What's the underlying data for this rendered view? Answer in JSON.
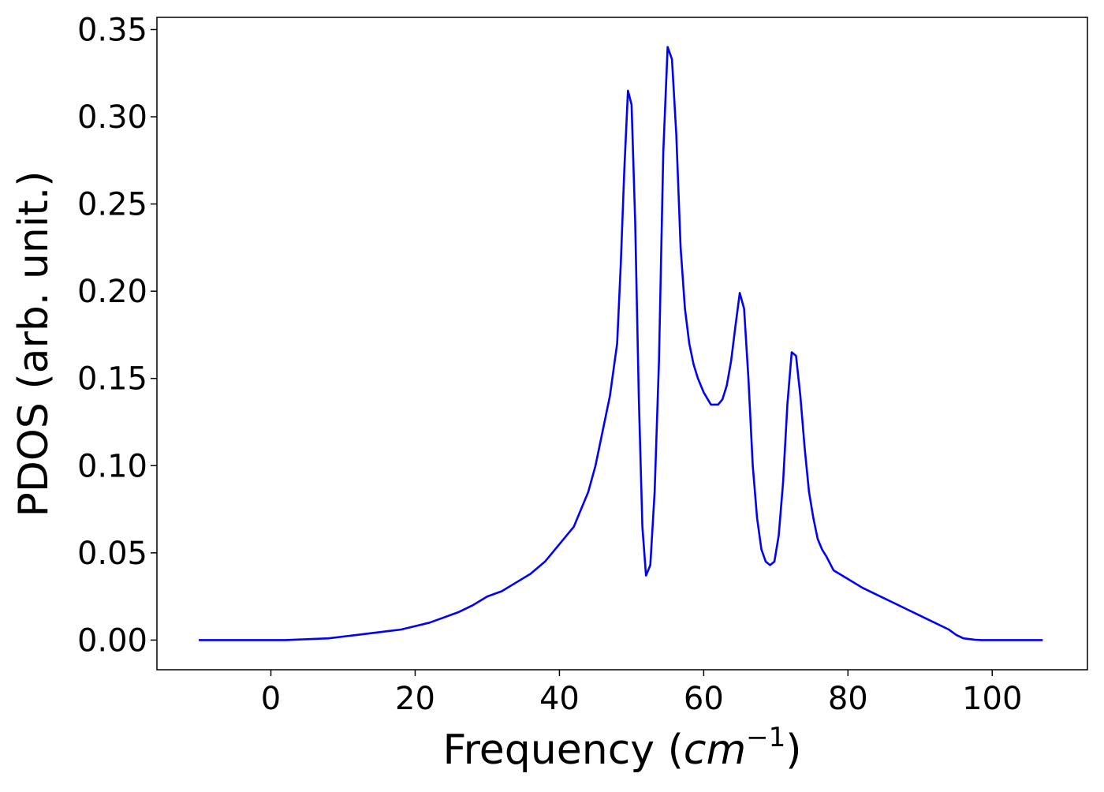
{
  "chart_data": {
    "type": "line",
    "title": "",
    "xlabel": "Frequency (cm⁻¹)",
    "xlabel_parts": {
      "prefix": "Frequency (",
      "math": "cm",
      "sup": "−1",
      "suffix": ")"
    },
    "ylabel": "PDOS (arb. unit.)",
    "xlim": [
      -15.8,
      113.2
    ],
    "ylim": [
      -0.017,
      0.357
    ],
    "x_ticks": [
      0,
      20,
      40,
      60,
      80,
      100
    ],
    "x_tick_labels": [
      "0",
      "20",
      "40",
      "60",
      "80",
      "100"
    ],
    "y_ticks": [
      0.0,
      0.05,
      0.1,
      0.15,
      0.2,
      0.25,
      0.3,
      0.35
    ],
    "y_tick_labels": [
      "0.00",
      "0.05",
      "0.10",
      "0.15",
      "0.20",
      "0.25",
      "0.30",
      "0.35"
    ],
    "grid": false,
    "legend": false,
    "series": [
      {
        "color": "#0000ff",
        "x": [
          -10,
          -5,
          0,
          2,
          5,
          8,
          10,
          12,
          14,
          16,
          18,
          20,
          22,
          24,
          26,
          28,
          30,
          32,
          34,
          36,
          38,
          40,
          42,
          44,
          45,
          46,
          47,
          48,
          48.5,
          49,
          49.5,
          50,
          50.5,
          51,
          51.5,
          52,
          52.6,
          53.2,
          53.8,
          54.4,
          55,
          55.6,
          56.2,
          56.8,
          57.4,
          58,
          58.6,
          59.2,
          60,
          61,
          62,
          62.6,
          63.2,
          63.8,
          64.4,
          65,
          65.6,
          66.2,
          66.8,
          67.4,
          68,
          68.6,
          69.2,
          69.8,
          70.4,
          71,
          71.6,
          72.2,
          72.8,
          73.4,
          74,
          74.6,
          75.2,
          75.8,
          76.4,
          77,
          78,
          80,
          82,
          84,
          86,
          88,
          90,
          92,
          94,
          95,
          96,
          97,
          97.5,
          98,
          98.5,
          99,
          100,
          105,
          107
        ],
        "y": [
          0.0,
          0.0,
          0.0,
          0.0,
          0.0005,
          0.001,
          0.002,
          0.003,
          0.004,
          0.005,
          0.006,
          0.008,
          0.01,
          0.013,
          0.016,
          0.02,
          0.025,
          0.028,
          0.033,
          0.038,
          0.045,
          0.055,
          0.065,
          0.085,
          0.1,
          0.12,
          0.14,
          0.17,
          0.215,
          0.27,
          0.315,
          0.307,
          0.24,
          0.14,
          0.065,
          0.037,
          0.043,
          0.085,
          0.16,
          0.28,
          0.34,
          0.333,
          0.29,
          0.225,
          0.19,
          0.17,
          0.158,
          0.15,
          0.142,
          0.135,
          0.135,
          0.138,
          0.146,
          0.16,
          0.18,
          0.199,
          0.19,
          0.15,
          0.1,
          0.07,
          0.052,
          0.045,
          0.043,
          0.045,
          0.06,
          0.09,
          0.135,
          0.165,
          0.163,
          0.14,
          0.11,
          0.085,
          0.07,
          0.058,
          0.052,
          0.048,
          0.04,
          0.035,
          0.03,
          0.026,
          0.022,
          0.018,
          0.014,
          0.01,
          0.006,
          0.003,
          0.001,
          0.0005,
          0.0002,
          0.0001,
          0.0,
          0.0,
          0.0,
          0.0,
          0.0
        ]
      }
    ]
  }
}
